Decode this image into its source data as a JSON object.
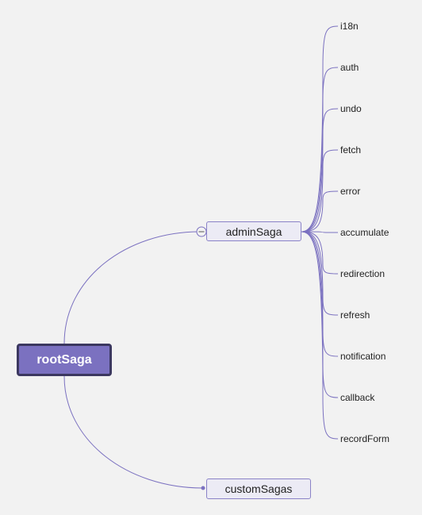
{
  "colors": {
    "background": "#f2f2f2",
    "link": "#7b71c0",
    "root_fill": "#7b71c0",
    "root_border": "#3c3860",
    "node_fill": "#ecebf5",
    "node_border": "#8a82c7"
  },
  "root": {
    "label": "rootSaga"
  },
  "admin": {
    "label": "adminSaga",
    "collapse_icon": "collapse-minus-icon",
    "children": [
      {
        "label": "i18n"
      },
      {
        "label": "auth"
      },
      {
        "label": "undo"
      },
      {
        "label": "fetch"
      },
      {
        "label": "error"
      },
      {
        "label": "accumulate"
      },
      {
        "label": "redirection"
      },
      {
        "label": "refresh"
      },
      {
        "label": "notification"
      },
      {
        "label": "callback"
      },
      {
        "label": "recordForm"
      }
    ]
  },
  "custom": {
    "label": "customSagas",
    "anchor_icon": "connector-dot-icon"
  }
}
